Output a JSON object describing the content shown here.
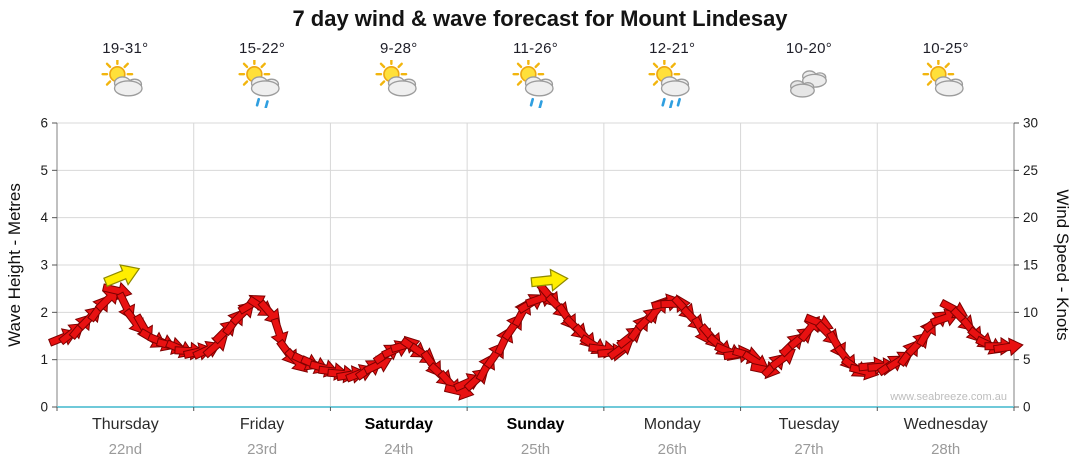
{
  "title": "7 day wind & wave forecast for Mount Lindesay",
  "watermark": "www.seabreeze.com.au",
  "colors": {
    "arrow": "#e81111",
    "arrow_outline": "#7d0000",
    "highlight": "#ffee00",
    "highlight_outline": "#8f8a00",
    "grid": "#d8d8d8",
    "axis": "#808080",
    "baseline": "#6fc9d9",
    "tick": "#555555",
    "rain_drop": "#2f9fe0"
  },
  "left_axis": {
    "title": "Wave Height - Metres",
    "ticks": [
      "6",
      "5",
      "4",
      "3",
      "2",
      "1",
      "0"
    ]
  },
  "right_axis": {
    "title": "Wind Speed - Knots",
    "ticks": [
      "30",
      "25",
      "20",
      "15",
      "10",
      "5",
      "0"
    ]
  },
  "days": [
    {
      "name": "Thursday",
      "date": "22nd",
      "temp": "19-31°",
      "icon": "sun-cloud-icon",
      "weekend": false
    },
    {
      "name": "Friday",
      "date": "23rd",
      "temp": "15-22°",
      "icon": "sun-cloud-showers-icon",
      "weekend": false
    },
    {
      "name": "Saturday",
      "date": "24th",
      "temp": "9-28°",
      "icon": "sun-cloud-icon",
      "weekend": true
    },
    {
      "name": "Sunday",
      "date": "25th",
      "temp": "11-26°",
      "icon": "sun-cloud-showers-icon",
      "weekend": true
    },
    {
      "name": "Monday",
      "date": "26th",
      "temp": "12-21°",
      "icon": "sun-cloud-rain-icon",
      "weekend": false
    },
    {
      "name": "Tuesday",
      "date": "27th",
      "temp": "10-20°",
      "icon": "clouds-icon",
      "weekend": false
    },
    {
      "name": "Wednesday",
      "date": "28th",
      "temp": "10-25°",
      "icon": "sun-cloud-icon",
      "weekend": false
    }
  ],
  "chart_data": {
    "type": "line",
    "title": "7 day wind & wave forecast for Mount Lindesay",
    "x_categories": [
      "Thursday 22nd",
      "Friday 23rd",
      "Saturday 24th",
      "Sunday 25th",
      "Monday 26th",
      "Tuesday 27th",
      "Wednesday 28th"
    ],
    "samples_per_day": 8,
    "series": [
      {
        "name": "Wind speed (knots, 3-hourly, shown as red arrows)",
        "axis": "right",
        "values": [
          7,
          8.5,
          10.5,
          12.5,
          9.5,
          7,
          6.5,
          6,
          6,
          7,
          9,
          11,
          10,
          6,
          4.5,
          4,
          3.5,
          3.5,
          4.5,
          5.5,
          6.5,
          5.5,
          3.5,
          2,
          2.5,
          5,
          8,
          11,
          12,
          10,
          8,
          6.5,
          6,
          7,
          9,
          11,
          11,
          9,
          6.5,
          5.5,
          5.5,
          4,
          5.5,
          7,
          9,
          7,
          4.5,
          4,
          4,
          5,
          7,
          9.5,
          10,
          8,
          6.5,
          6.5
        ]
      }
    ],
    "ylabel_left": "Wave Height - Metres",
    "ylim_left": [
      0,
      6
    ],
    "ylabel_right": "Wind Speed - Knots",
    "ylim_right": [
      0,
      30
    ],
    "grid": true,
    "legend": false,
    "annotations": [
      {
        "type": "highlight-arrow",
        "color": "yellow",
        "day_index": 0,
        "slot": 3,
        "angle_deg": -22
      },
      {
        "type": "highlight-arrow",
        "color": "yellow",
        "day_index": 3,
        "slot": 4,
        "angle_deg": -6
      }
    ]
  }
}
